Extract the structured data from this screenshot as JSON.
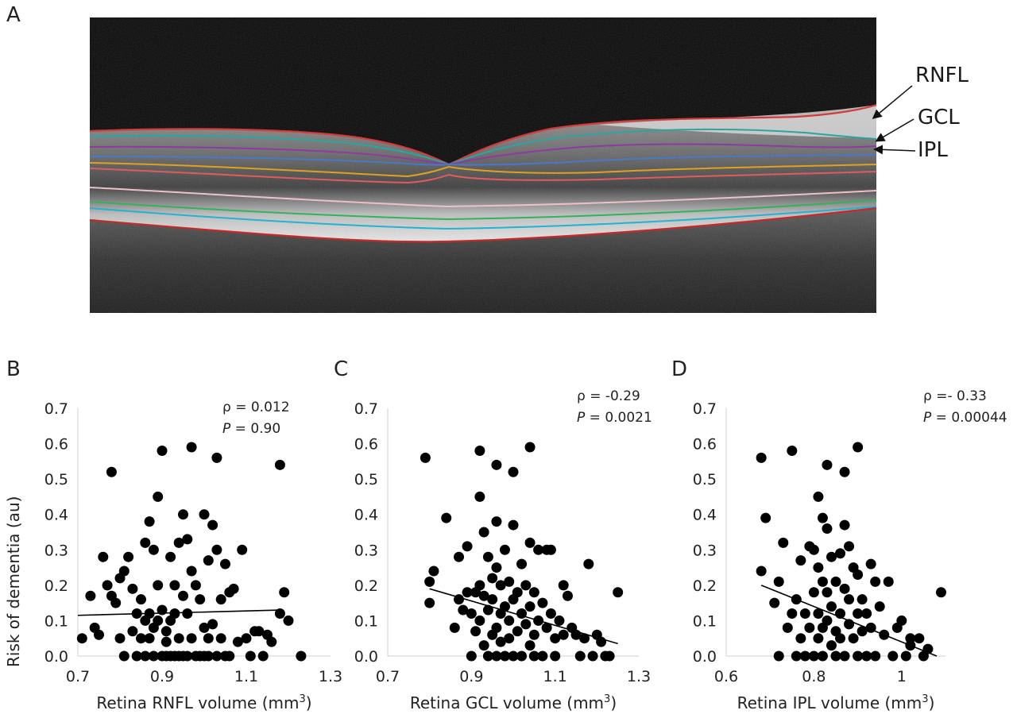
{
  "panels": {
    "a": "A",
    "b": "B",
    "c": "C",
    "d": "D"
  },
  "oct_image": {
    "layer_labels": [
      "RNFL",
      "GCL",
      "IPL"
    ],
    "colors": {
      "background": "#060606",
      "rnfl_boundary": "#d43b3b",
      "gcl_boundary": "#2aa6a0",
      "ipl_boundary": "#8e3aa0",
      "inl_boundary": "#4a78c8",
      "opl_boundary": "#e0a020",
      "onl_boundary": "#e05c5c",
      "elm_boundary": "#f0c0c8",
      "rpe_green": "#2fb45c",
      "rpe_cyan": "#21b3d0",
      "bruch_red": "#c82828"
    }
  },
  "ylabel": "Risk of dementia (au)",
  "chart_data": [
    {
      "type": "scatter",
      "xlabel": "Retina RNFL volume (mm",
      "xlabel_sup": "3",
      "xlabel_end": ")",
      "xlim": [
        0.7,
        1.3
      ],
      "ylim": [
        0.0,
        0.7
      ],
      "xticks": [
        "0.7",
        "0.9",
        "1.1",
        "1.3"
      ],
      "yticks": [
        "0.0",
        "0.1",
        "0.2",
        "0.3",
        "0.4",
        "0.5",
        "0.6",
        "0.7"
      ],
      "stats": {
        "rho_label": "ρ = 0.012",
        "p_letter": "P",
        "p_value": " = 0.90"
      },
      "trend": {
        "x": [
          0.7,
          1.18
        ],
        "y": [
          0.115,
          0.13
        ]
      },
      "points": [
        [
          0.71,
          0.05
        ],
        [
          0.73,
          0.17
        ],
        [
          0.74,
          0.08
        ],
        [
          0.75,
          0.06
        ],
        [
          0.76,
          0.28
        ],
        [
          0.77,
          0.2
        ],
        [
          0.78,
          0.17
        ],
        [
          0.78,
          0.52
        ],
        [
          0.79,
          0.15
        ],
        [
          0.8,
          0.22
        ],
        [
          0.8,
          0.05
        ],
        [
          0.81,
          0.24
        ],
        [
          0.81,
          0.0
        ],
        [
          0.82,
          0.28
        ],
        [
          0.83,
          0.19
        ],
        [
          0.83,
          0.07
        ],
        [
          0.84,
          0.12
        ],
        [
          0.84,
          0.0
        ],
        [
          0.85,
          0.16
        ],
        [
          0.85,
          0.05
        ],
        [
          0.86,
          0.32
        ],
        [
          0.86,
          0.1
        ],
        [
          0.86,
          0.0
        ],
        [
          0.87,
          0.38
        ],
        [
          0.87,
          0.12
        ],
        [
          0.87,
          0.05
        ],
        [
          0.88,
          0.3
        ],
        [
          0.88,
          0.08
        ],
        [
          0.88,
          0.0
        ],
        [
          0.89,
          0.45
        ],
        [
          0.89,
          0.2
        ],
        [
          0.89,
          0.1
        ],
        [
          0.9,
          0.58
        ],
        [
          0.9,
          0.13
        ],
        [
          0.9,
          0.0
        ],
        [
          0.91,
          0.07
        ],
        [
          0.91,
          0.04
        ],
        [
          0.91,
          0.0
        ],
        [
          0.92,
          0.28
        ],
        [
          0.92,
          0.1
        ],
        [
          0.92,
          0.0
        ],
        [
          0.93,
          0.2
        ],
        [
          0.93,
          0.12
        ],
        [
          0.93,
          0.0
        ],
        [
          0.94,
          0.32
        ],
        [
          0.94,
          0.05
        ],
        [
          0.94,
          0.0
        ],
        [
          0.95,
          0.4
        ],
        [
          0.95,
          0.17
        ],
        [
          0.95,
          0.0
        ],
        [
          0.96,
          0.33
        ],
        [
          0.96,
          0.12
        ],
        [
          0.96,
          0.0
        ],
        [
          0.97,
          0.59
        ],
        [
          0.97,
          0.24
        ],
        [
          0.97,
          0.05
        ],
        [
          0.98,
          0.2
        ],
        [
          0.98,
          0.0
        ],
        [
          0.99,
          0.16
        ],
        [
          0.99,
          0.0
        ],
        [
          1.0,
          0.4
        ],
        [
          1.0,
          0.08
        ],
        [
          1.0,
          0.0
        ],
        [
          1.01,
          0.27
        ],
        [
          1.01,
          0.05
        ],
        [
          1.01,
          0.0
        ],
        [
          1.02,
          0.37
        ],
        [
          1.02,
          0.09
        ],
        [
          1.03,
          0.56
        ],
        [
          1.03,
          0.3
        ],
        [
          1.03,
          0.0
        ],
        [
          1.04,
          0.16
        ],
        [
          1.04,
          0.05
        ],
        [
          1.05,
          0.26
        ],
        [
          1.05,
          0.0
        ],
        [
          1.06,
          0.18
        ],
        [
          1.06,
          0.0
        ],
        [
          1.07,
          0.19
        ],
        [
          1.08,
          0.04
        ],
        [
          1.09,
          0.3
        ],
        [
          1.1,
          0.05
        ],
        [
          1.11,
          0.0
        ],
        [
          1.12,
          0.07
        ],
        [
          1.13,
          0.07
        ],
        [
          1.14,
          0.0
        ],
        [
          1.15,
          0.06
        ],
        [
          1.16,
          0.04
        ],
        [
          1.18,
          0.54
        ],
        [
          1.18,
          0.12
        ],
        [
          1.19,
          0.18
        ],
        [
          1.2,
          0.1
        ],
        [
          1.23,
          0.0
        ]
      ]
    },
    {
      "type": "scatter",
      "xlabel": "Retina GCL volume (mm",
      "xlabel_sup": "3",
      "xlabel_end": ")",
      "xlim": [
        0.7,
        1.3
      ],
      "ylim": [
        0.0,
        0.7
      ],
      "xticks": [
        "0.7",
        "0.9",
        "1.1",
        "1.3"
      ],
      "yticks": [
        "0.0",
        "0.1",
        "0.2",
        "0.3",
        "0.4",
        "0.5",
        "0.6",
        "0.7"
      ],
      "stats": {
        "rho_label": "ρ = -0.29",
        "p_letter": "P",
        "p_value": " = 0.0021"
      },
      "trend": {
        "x": [
          0.8,
          1.25
        ],
        "y": [
          0.19,
          0.035
        ]
      },
      "points": [
        [
          0.79,
          0.56
        ],
        [
          0.8,
          0.21
        ],
        [
          0.8,
          0.15
        ],
        [
          0.81,
          0.24
        ],
        [
          0.84,
          0.39
        ],
        [
          0.86,
          0.08
        ],
        [
          0.87,
          0.28
        ],
        [
          0.87,
          0.16
        ],
        [
          0.88,
          0.13
        ],
        [
          0.89,
          0.31
        ],
        [
          0.89,
          0.18
        ],
        [
          0.9,
          0.12
        ],
        [
          0.9,
          0.0
        ],
        [
          0.91,
          0.18
        ],
        [
          0.91,
          0.07
        ],
        [
          0.92,
          0.45
        ],
        [
          0.92,
          0.58
        ],
        [
          0.92,
          0.2
        ],
        [
          0.92,
          0.1
        ],
        [
          0.93,
          0.35
        ],
        [
          0.93,
          0.17
        ],
        [
          0.93,
          0.03
        ],
        [
          0.94,
          0.28
        ],
        [
          0.94,
          0.13
        ],
        [
          0.94,
          0.0
        ],
        [
          0.95,
          0.22
        ],
        [
          0.95,
          0.16
        ],
        [
          0.95,
          0.06
        ],
        [
          0.96,
          0.54
        ],
        [
          0.96,
          0.38
        ],
        [
          0.96,
          0.25
        ],
        [
          0.96,
          0.08
        ],
        [
          0.96,
          0.0
        ],
        [
          0.97,
          0.2
        ],
        [
          0.97,
          0.12
        ],
        [
          0.97,
          0.04
        ],
        [
          0.98,
          0.3
        ],
        [
          0.98,
          0.14
        ],
        [
          0.98,
          0.0
        ],
        [
          0.99,
          0.21
        ],
        [
          0.99,
          0.1
        ],
        [
          0.99,
          0.05
        ],
        [
          1.0,
          0.52
        ],
        [
          1.0,
          0.37
        ],
        [
          1.0,
          0.16
        ],
        [
          1.0,
          0.0
        ],
        [
          1.01,
          0.18
        ],
        [
          1.01,
          0.07
        ],
        [
          1.02,
          0.26
        ],
        [
          1.02,
          0.12
        ],
        [
          1.02,
          0.0
        ],
        [
          1.03,
          0.2
        ],
        [
          1.03,
          0.09
        ],
        [
          1.04,
          0.59
        ],
        [
          1.04,
          0.32
        ],
        [
          1.04,
          0.14
        ],
        [
          1.04,
          0.03
        ],
        [
          1.05,
          0.18
        ],
        [
          1.05,
          0.06
        ],
        [
          1.05,
          0.0
        ],
        [
          1.06,
          0.3
        ],
        [
          1.06,
          0.1
        ],
        [
          1.07,
          0.15
        ],
        [
          1.07,
          0.0
        ],
        [
          1.08,
          0.3
        ],
        [
          1.08,
          0.08
        ],
        [
          1.09,
          0.3
        ],
        [
          1.09,
          0.12
        ],
        [
          1.1,
          0.05
        ],
        [
          1.1,
          0.0
        ],
        [
          1.11,
          0.1
        ],
        [
          1.12,
          0.2
        ],
        [
          1.12,
          0.06
        ],
        [
          1.13,
          0.17
        ],
        [
          1.14,
          0.08
        ],
        [
          1.15,
          0.06
        ],
        [
          1.16,
          0.0
        ],
        [
          1.17,
          0.05
        ],
        [
          1.18,
          0.26
        ],
        [
          1.19,
          0.0
        ],
        [
          1.2,
          0.06
        ],
        [
          1.21,
          0.04
        ],
        [
          1.22,
          0.0
        ],
        [
          1.23,
          0.0
        ],
        [
          1.25,
          0.18
        ]
      ]
    },
    {
      "type": "scatter",
      "xlabel": "Retina IPL volume (mm",
      "xlabel_sup": "3",
      "xlabel_end": ")",
      "xlim": [
        0.6,
        1.1
      ],
      "ylim": [
        0.0,
        0.7
      ],
      "xticks": [
        "0.6",
        "0.8",
        "1"
      ],
      "yticks": [
        "0.0",
        "0.1",
        "0.2",
        "0.3",
        "0.4",
        "0.5",
        "0.6",
        "0.7"
      ],
      "stats": {
        "rho_label": "ρ =- 0.33",
        "p_letter": "P",
        "p_value": " = 0.00044"
      },
      "trend": {
        "x": [
          0.68,
          1.08
        ],
        "y": [
          0.2,
          0.0
        ]
      },
      "points": [
        [
          0.68,
          0.56
        ],
        [
          0.68,
          0.24
        ],
        [
          0.69,
          0.39
        ],
        [
          0.71,
          0.15
        ],
        [
          0.72,
          0.0
        ],
        [
          0.72,
          0.21
        ],
        [
          0.73,
          0.32
        ],
        [
          0.74,
          0.08
        ],
        [
          0.75,
          0.58
        ],
        [
          0.75,
          0.12
        ],
        [
          0.76,
          0.0
        ],
        [
          0.76,
          0.16
        ],
        [
          0.77,
          0.27
        ],
        [
          0.77,
          0.05
        ],
        [
          0.78,
          0.12
        ],
        [
          0.78,
          0.0
        ],
        [
          0.79,
          0.31
        ],
        [
          0.79,
          0.08
        ],
        [
          0.8,
          0.18
        ],
        [
          0.8,
          0.0
        ],
        [
          0.8,
          0.3
        ],
        [
          0.81,
          0.45
        ],
        [
          0.81,
          0.25
        ],
        [
          0.81,
          0.12
        ],
        [
          0.81,
          0.05
        ],
        [
          0.82,
          0.39
        ],
        [
          0.82,
          0.21
        ],
        [
          0.82,
          0.08
        ],
        [
          0.82,
          0.0
        ],
        [
          0.83,
          0.54
        ],
        [
          0.83,
          0.36
        ],
        [
          0.83,
          0.18
        ],
        [
          0.83,
          0.1
        ],
        [
          0.84,
          0.28
        ],
        [
          0.84,
          0.14
        ],
        [
          0.84,
          0.03
        ],
        [
          0.85,
          0.21
        ],
        [
          0.85,
          0.07
        ],
        [
          0.85,
          0.0
        ],
        [
          0.86,
          0.29
        ],
        [
          0.86,
          0.12
        ],
        [
          0.86,
          0.05
        ],
        [
          0.87,
          0.52
        ],
        [
          0.87,
          0.37
        ],
        [
          0.87,
          0.19
        ],
        [
          0.87,
          0.0
        ],
        [
          0.88,
          0.31
        ],
        [
          0.88,
          0.16
        ],
        [
          0.88,
          0.09
        ],
        [
          0.89,
          0.25
        ],
        [
          0.89,
          0.05
        ],
        [
          0.9,
          0.59
        ],
        [
          0.9,
          0.23
        ],
        [
          0.9,
          0.12
        ],
        [
          0.9,
          0.0
        ],
        [
          0.91,
          0.16
        ],
        [
          0.91,
          0.07
        ],
        [
          0.92,
          0.12
        ],
        [
          0.92,
          0.0
        ],
        [
          0.93,
          0.26
        ],
        [
          0.93,
          0.08
        ],
        [
          0.94,
          0.21
        ],
        [
          0.94,
          0.0
        ],
        [
          0.95,
          0.14
        ],
        [
          0.96,
          0.06
        ],
        [
          0.97,
          0.21
        ],
        [
          0.98,
          0.0
        ],
        [
          0.99,
          0.08
        ],
        [
          1.0,
          0.1
        ],
        [
          1.01,
          0.0
        ],
        [
          1.02,
          0.05
        ],
        [
          1.02,
          0.03
        ],
        [
          1.04,
          0.05
        ],
        [
          1.05,
          0.0
        ],
        [
          1.06,
          0.02
        ],
        [
          1.09,
          0.18
        ]
      ]
    }
  ]
}
